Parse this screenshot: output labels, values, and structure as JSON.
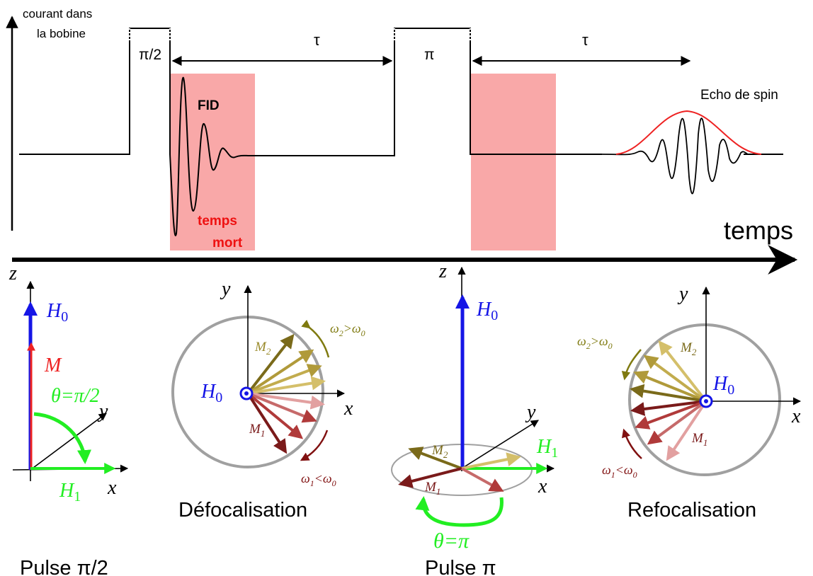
{
  "timeline": {
    "coil_current_label_line1": "courant dans",
    "coil_current_label_line2": "la bobine",
    "pulse_half_label": "π/2",
    "pulse_pi_label": "π",
    "tau_label_1": "τ",
    "tau_label_2": "τ",
    "fid_label": "FID",
    "dead_time_line1": "temps",
    "dead_time_line2": "mort",
    "echo_label": "Echo de spin",
    "time_axis_label": "temps"
  },
  "panel_pulse_half": {
    "z_label": "z",
    "h0_label": "H",
    "h0_sub": "0",
    "m_label": "M",
    "theta_label": "θ=π/2",
    "y_label": "y",
    "x_label": "x",
    "h1_label": "H",
    "h1_sub": "1",
    "caption": "Pulse π/2"
  },
  "panel_defocus": {
    "y_label": "y",
    "x_label": "x",
    "h0_label": "H",
    "h0_sub": "0",
    "m2_label": "M",
    "m2_sub": "2",
    "m1_label": "M",
    "m1_sub": "1",
    "w2_label": "ω",
    "w2_sub": "2",
    "w2_rel": ">ω",
    "w2_rel_sub": "0",
    "w1_label": "ω",
    "w1_sub": "1",
    "w1_rel": "<ω",
    "w1_rel_sub": "0",
    "caption": "Défocalisation"
  },
  "panel_pulse_pi": {
    "z_label": "z",
    "h0_label": "H",
    "h0_sub": "0",
    "y_label": "y",
    "x_label": "x",
    "h1_label": "H",
    "h1_sub": "1",
    "m2_label": "M",
    "m2_sub": "2",
    "m1_label": "M",
    "m1_sub": "1",
    "theta_label": "θ=π",
    "caption": "Pulse π"
  },
  "panel_refocus": {
    "y_label": "y",
    "x_label": "x",
    "h0_label": "H",
    "h0_sub": "0",
    "m2_label": "M",
    "m2_sub": "2",
    "m1_label": "M",
    "m1_sub": "1",
    "w2_label": "ω",
    "w2_sub": "2",
    "w2_rel": ">ω",
    "w2_rel_sub": "0",
    "w1_label": "ω",
    "w1_sub": "1",
    "w1_rel": "<ω",
    "w1_rel_sub": "0",
    "caption": "Refocalisation"
  },
  "colors": {
    "h0": "#1515e6",
    "h1": "#22ee22",
    "magnetization": "#ee2222",
    "dead_time": "#f9a8a8",
    "echo_envelope": "#ee2222",
    "circle": "#a0a0a0",
    "m2_dark": "#7a6a1a",
    "m2_mid": "#b09a3a",
    "m2_light": "#d4bf6a",
    "m1_dark": "#7a1a1a",
    "m1_mid": "#b03a3a",
    "m1_light": "#e2a0a0",
    "w2_arrow": "#7f7a10",
    "w1_arrow": "#801010"
  }
}
